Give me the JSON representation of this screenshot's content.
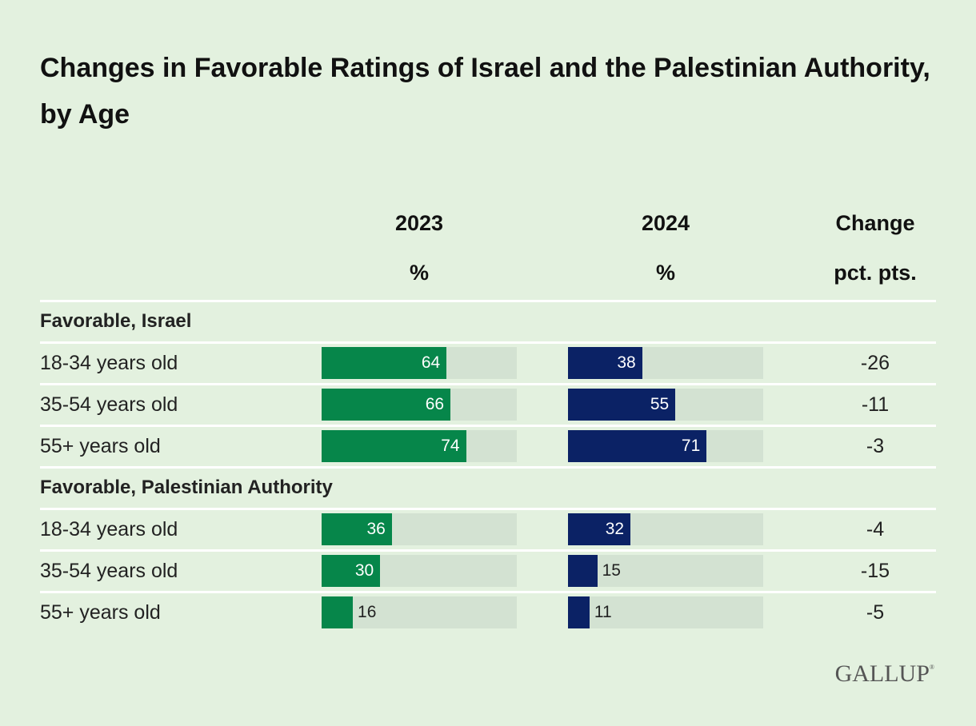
{
  "chart_data": {
    "type": "bar",
    "title": "Changes in Favorable Ratings of Israel and the Palestinian Authority, by Age",
    "columns": [
      {
        "label": "2023",
        "unit": "%"
      },
      {
        "label": "2024",
        "unit": "%"
      },
      {
        "label": "Change",
        "unit": "pct. pts."
      }
    ],
    "xlim": [
      0,
      100
    ],
    "colors": {
      "2023": "#06864a",
      "2024": "#0b2265",
      "track": "#d3e2d2"
    },
    "groups": [
      {
        "label": "Favorable, Israel",
        "rows": [
          {
            "label": "18-34 years old",
            "v2023": 64,
            "v2024": 38,
            "change": "-26"
          },
          {
            "label": "35-54 years old",
            "v2023": 66,
            "v2024": 55,
            "change": "-11"
          },
          {
            "label": "55+ years old",
            "v2023": 74,
            "v2024": 71,
            "change": "-3"
          }
        ]
      },
      {
        "label": "Favorable, Palestinian Authority",
        "rows": [
          {
            "label": "18-34 years old",
            "v2023": 36,
            "v2024": 32,
            "change": "-4"
          },
          {
            "label": "35-54 years old",
            "v2023": 30,
            "v2024": 15,
            "change": "-15"
          },
          {
            "label": "55+ years old",
            "v2023": 16,
            "v2024": 11,
            "change": "-5"
          }
        ]
      }
    ]
  },
  "logo": "GALLUP",
  "logo_mark": "®"
}
